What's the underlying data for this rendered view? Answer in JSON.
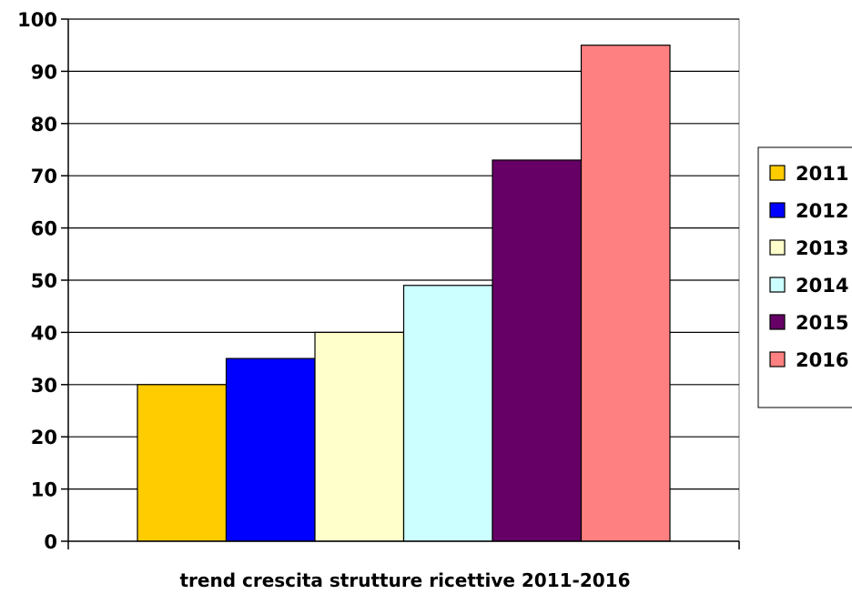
{
  "chart_data": {
    "type": "bar",
    "title": "",
    "xlabel": "trend crescita strutture ricettive 2011-2016",
    "ylabel": "",
    "ylim": [
      0,
      100
    ],
    "yticks": [
      0,
      10,
      20,
      30,
      40,
      50,
      60,
      70,
      80,
      90,
      100
    ],
    "grid": true,
    "legend_position": "right",
    "series": [
      {
        "name": "2011",
        "value": 30,
        "color": "#FFCC00"
      },
      {
        "name": "2012",
        "value": 35,
        "color": "#0000FF"
      },
      {
        "name": "2013",
        "value": 40,
        "color": "#FFFFCC"
      },
      {
        "name": "2014",
        "value": 49,
        "color": "#CCFFFF"
      },
      {
        "name": "2015",
        "value": 73,
        "color": "#660066"
      },
      {
        "name": "2016",
        "value": 95,
        "color": "#FF8080"
      }
    ]
  }
}
